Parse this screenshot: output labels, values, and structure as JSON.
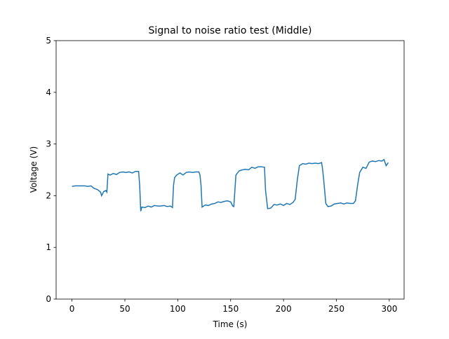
{
  "chart_data": {
    "type": "line",
    "title": "Signal to noise ratio test (Middle)",
    "x_label": "Time (s)",
    "y_label": "Voltage (V)",
    "x": [
      0,
      3,
      6,
      9,
      12,
      15,
      18,
      21,
      24,
      27,
      28,
      30,
      32,
      33,
      34,
      36,
      39,
      42,
      45,
      48,
      51,
      54,
      57,
      60,
      63,
      64,
      65,
      66,
      69,
      72,
      75,
      78,
      81,
      84,
      87,
      90,
      93,
      95,
      96,
      97,
      99,
      102,
      105,
      108,
      111,
      114,
      117,
      120,
      121,
      122,
      123,
      126,
      129,
      132,
      135,
      138,
      141,
      144,
      147,
      150,
      152,
      153,
      154,
      155,
      158,
      161,
      164,
      167,
      170,
      173,
      176,
      179,
      182,
      183,
      185,
      188,
      191,
      194,
      197,
      200,
      203,
      206,
      209,
      211,
      213,
      215,
      218,
      221,
      224,
      227,
      230,
      233,
      236,
      237,
      238,
      240,
      242,
      245,
      248,
      251,
      254,
      257,
      260,
      263,
      266,
      268,
      270,
      272,
      275,
      278,
      281,
      284,
      287,
      290,
      293,
      295,
      297,
      299
    ],
    "series": [
      {
        "name": "Voltage",
        "color": "#1f77b4",
        "values": [
          2.18,
          2.19,
          2.19,
          2.19,
          2.19,
          2.18,
          2.19,
          2.14,
          2.12,
          2.07,
          2.0,
          2.08,
          2.1,
          2.07,
          2.42,
          2.4,
          2.43,
          2.41,
          2.45,
          2.46,
          2.45,
          2.46,
          2.44,
          2.47,
          2.47,
          2.2,
          1.7,
          1.78,
          1.77,
          1.8,
          1.78,
          1.81,
          1.8,
          1.8,
          1.81,
          1.79,
          1.8,
          1.77,
          2.2,
          2.35,
          2.4,
          2.44,
          2.4,
          2.45,
          2.46,
          2.45,
          2.46,
          2.46,
          2.4,
          2.2,
          1.78,
          1.82,
          1.81,
          1.84,
          1.85,
          1.88,
          1.87,
          1.89,
          1.9,
          1.88,
          1.8,
          1.79,
          2.1,
          2.4,
          2.48,
          2.5,
          2.51,
          2.5,
          2.55,
          2.53,
          2.56,
          2.56,
          2.55,
          2.1,
          1.75,
          1.76,
          1.83,
          1.82,
          1.84,
          1.81,
          1.85,
          1.83,
          1.87,
          1.93,
          2.3,
          2.58,
          2.62,
          2.61,
          2.63,
          2.62,
          2.63,
          2.62,
          2.64,
          2.5,
          2.3,
          1.85,
          1.79,
          1.8,
          1.84,
          1.85,
          1.86,
          1.84,
          1.86,
          1.85,
          1.85,
          1.9,
          2.2,
          2.45,
          2.55,
          2.53,
          2.65,
          2.67,
          2.66,
          2.68,
          2.67,
          2.7,
          2.58,
          2.64
        ]
      }
    ],
    "xlim": [
      -15,
      314
    ],
    "ylim": [
      0,
      5
    ],
    "xticks": [
      0,
      50,
      100,
      150,
      200,
      250,
      300
    ],
    "yticks": [
      0,
      1,
      2,
      3,
      4,
      5
    ]
  }
}
